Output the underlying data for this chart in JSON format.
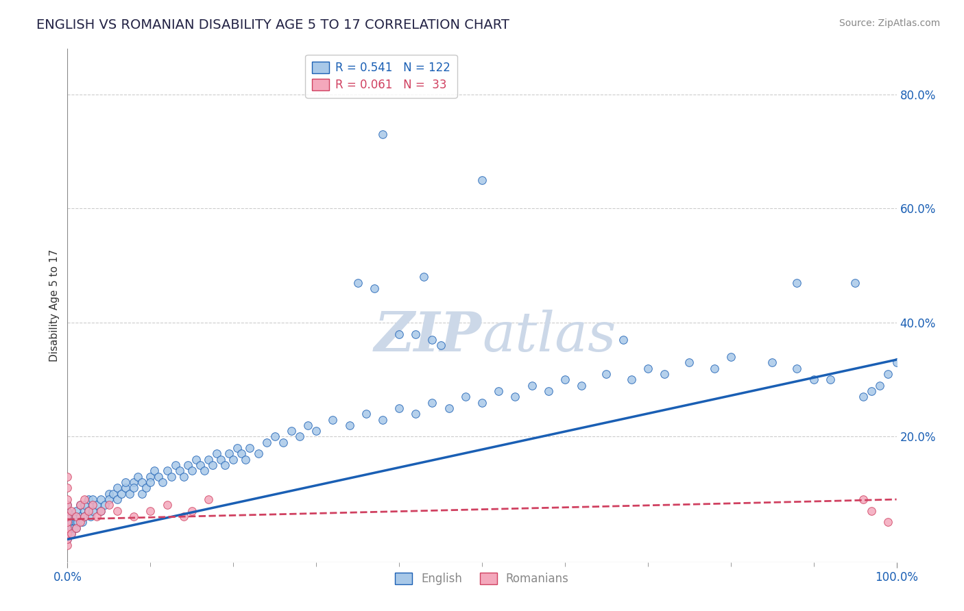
{
  "title": "ENGLISH VS ROMANIAN DISABILITY AGE 5 TO 17 CORRELATION CHART",
  "source": "Source: ZipAtlas.com",
  "ylabel": "Disability Age 5 to 17",
  "xlim": [
    0.0,
    1.0
  ],
  "ylim": [
    -0.02,
    0.88
  ],
  "ytick_labels": [
    "20.0%",
    "40.0%",
    "60.0%",
    "80.0%"
  ],
  "ytick_positions": [
    0.2,
    0.4,
    0.6,
    0.8
  ],
  "english_R": 0.541,
  "english_N": 122,
  "romanian_R": 0.061,
  "romanian_N": 33,
  "english_color": "#a8c8e8",
  "romanian_color": "#f4a8bc",
  "english_line_color": "#1a5fb4",
  "romanian_line_color": "#d04060",
  "background_color": "#ffffff",
  "grid_color": "#cccccc",
  "title_color": "#222244",
  "watermark_color": "#ccd8e8",
  "legend_facecolor": "#ffffff",
  "legend_edgecolor": "#bbbbbb",
  "english_x": [
    0.0,
    0.0,
    0.0,
    0.0,
    0.0,
    0.0,
    0.0,
    0.0,
    0.0,
    0.0,
    0.005,
    0.005,
    0.005,
    0.008,
    0.008,
    0.01,
    0.01,
    0.01,
    0.01,
    0.012,
    0.015,
    0.015,
    0.018,
    0.02,
    0.02,
    0.02,
    0.025,
    0.025,
    0.028,
    0.03,
    0.03,
    0.03,
    0.035,
    0.04,
    0.04,
    0.045,
    0.05,
    0.05,
    0.055,
    0.06,
    0.06,
    0.065,
    0.07,
    0.07,
    0.075,
    0.08,
    0.08,
    0.085,
    0.09,
    0.09,
    0.095,
    0.1,
    0.1,
    0.105,
    0.11,
    0.115,
    0.12,
    0.125,
    0.13,
    0.135,
    0.14,
    0.145,
    0.15,
    0.155,
    0.16,
    0.165,
    0.17,
    0.175,
    0.18,
    0.185,
    0.19,
    0.195,
    0.2,
    0.205,
    0.21,
    0.215,
    0.22,
    0.23,
    0.24,
    0.25,
    0.26,
    0.27,
    0.28,
    0.29,
    0.3,
    0.32,
    0.34,
    0.36,
    0.38,
    0.4,
    0.42,
    0.44,
    0.46,
    0.48,
    0.5,
    0.52,
    0.54,
    0.56,
    0.58,
    0.6,
    0.62,
    0.65,
    0.68,
    0.7,
    0.72,
    0.75,
    0.78,
    0.8,
    0.85,
    0.88,
    0.9,
    0.92,
    0.95,
    0.96,
    0.97,
    0.98,
    0.99,
    1.0,
    0.35,
    0.37,
    0.4,
    0.42
  ],
  "english_y": [
    0.02,
    0.03,
    0.04,
    0.05,
    0.06,
    0.07,
    0.08,
    0.03,
    0.05,
    0.04,
    0.03,
    0.05,
    0.04,
    0.06,
    0.04,
    0.05,
    0.06,
    0.07,
    0.04,
    0.05,
    0.06,
    0.08,
    0.05,
    0.07,
    0.06,
    0.08,
    0.07,
    0.09,
    0.06,
    0.08,
    0.07,
    0.09,
    0.08,
    0.09,
    0.07,
    0.08,
    0.1,
    0.09,
    0.1,
    0.11,
    0.09,
    0.1,
    0.11,
    0.12,
    0.1,
    0.12,
    0.11,
    0.13,
    0.12,
    0.1,
    0.11,
    0.13,
    0.12,
    0.14,
    0.13,
    0.12,
    0.14,
    0.13,
    0.15,
    0.14,
    0.13,
    0.15,
    0.14,
    0.16,
    0.15,
    0.14,
    0.16,
    0.15,
    0.17,
    0.16,
    0.15,
    0.17,
    0.16,
    0.18,
    0.17,
    0.16,
    0.18,
    0.17,
    0.19,
    0.2,
    0.19,
    0.21,
    0.2,
    0.22,
    0.21,
    0.23,
    0.22,
    0.24,
    0.23,
    0.25,
    0.24,
    0.26,
    0.25,
    0.27,
    0.26,
    0.28,
    0.27,
    0.29,
    0.28,
    0.3,
    0.29,
    0.31,
    0.3,
    0.32,
    0.31,
    0.33,
    0.32,
    0.34,
    0.33,
    0.32,
    0.3,
    0.3,
    0.47,
    0.27,
    0.28,
    0.29,
    0.31,
    0.33,
    0.47,
    0.46,
    0.38,
    0.38
  ],
  "english_outliers_x": [
    0.38,
    0.5,
    0.43,
    0.44,
    0.45,
    0.67,
    0.88
  ],
  "english_outliers_y": [
    0.73,
    0.65,
    0.48,
    0.37,
    0.36,
    0.37,
    0.47
  ],
  "romanian_x": [
    0.0,
    0.0,
    0.0,
    0.0,
    0.0,
    0.0,
    0.0,
    0.0,
    0.0,
    0.0,
    0.005,
    0.005,
    0.01,
    0.01,
    0.015,
    0.015,
    0.02,
    0.02,
    0.025,
    0.03,
    0.035,
    0.04,
    0.05,
    0.06,
    0.08,
    0.1,
    0.12,
    0.14,
    0.15,
    0.17,
    0.96,
    0.97,
    0.99
  ],
  "romanian_y": [
    0.01,
    0.02,
    0.03,
    0.04,
    0.05,
    0.06,
    0.08,
    0.09,
    0.11,
    0.13,
    0.03,
    0.07,
    0.04,
    0.06,
    0.05,
    0.08,
    0.06,
    0.09,
    0.07,
    0.08,
    0.06,
    0.07,
    0.08,
    0.07,
    0.06,
    0.07,
    0.08,
    0.06,
    0.07,
    0.09,
    0.09,
    0.07,
    0.05
  ],
  "english_line_x": [
    0.0,
    1.0
  ],
  "english_line_y": [
    0.02,
    0.335
  ],
  "romanian_line_x": [
    0.0,
    1.0
  ],
  "romanian_line_y": [
    0.055,
    0.09
  ]
}
